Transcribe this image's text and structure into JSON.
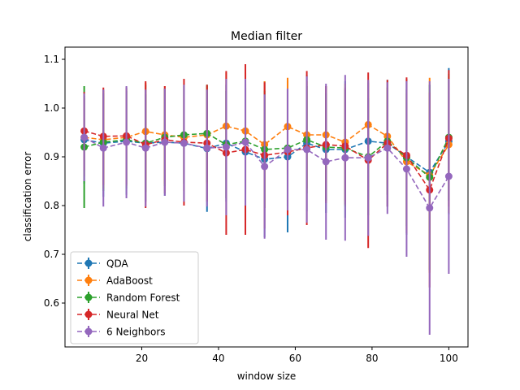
{
  "chart_data": {
    "type": "line",
    "title": "Median filter",
    "xlabel": "window size",
    "ylabel": "classification error",
    "xlim": [
      0,
      105
    ],
    "ylim": [
      0.51,
      1.125
    ],
    "xticks": [
      20,
      40,
      60,
      80,
      100
    ],
    "xtick_labels": [
      "20",
      "40",
      "60",
      "80",
      "100"
    ],
    "yticks": [
      0.6,
      0.7,
      0.8,
      0.9,
      1.0,
      1.1
    ],
    "ytick_labels": [
      "0.6",
      "0.7",
      "0.8",
      "0.9",
      "1.0",
      "1.1"
    ],
    "grid": false,
    "legend_position": "lower-left",
    "x": [
      5,
      10,
      16,
      21,
      26,
      31,
      37,
      42,
      47,
      52,
      58,
      63,
      68,
      73,
      79,
      84,
      89,
      95,
      100
    ],
    "series": [
      {
        "name": "QDA",
        "color": "#1f77b4",
        "values": [
          0.935,
          0.928,
          0.932,
          0.928,
          0.93,
          0.928,
          0.917,
          0.928,
          0.91,
          0.895,
          0.9,
          0.928,
          0.915,
          0.915,
          0.932,
          0.928,
          0.9,
          0.868,
          0.932
        ],
        "errors": [
          0.09,
          0.11,
          0.11,
          0.12,
          0.11,
          0.12,
          0.13,
          0.12,
          0.14,
          0.16,
          0.155,
          0.14,
          0.13,
          0.14,
          0.12,
          0.13,
          0.16,
          0.18,
          0.15
        ]
      },
      {
        "name": "AdaBoost",
        "color": "#ff7f0e",
        "values": [
          0.94,
          0.935,
          0.94,
          0.952,
          0.945,
          0.94,
          0.945,
          0.963,
          0.953,
          0.925,
          0.962,
          0.945,
          0.945,
          0.93,
          0.966,
          0.942,
          0.89,
          0.862,
          0.925
        ],
        "errors": [
          0.08,
          0.1,
          0.1,
          0.1,
          0.1,
          0.11,
          0.1,
          0.11,
          0.12,
          0.13,
          0.1,
          0.11,
          0.1,
          0.12,
          0.09,
          0.1,
          0.14,
          0.2,
          0.14
        ]
      },
      {
        "name": "Random Forest",
        "color": "#2ca02c",
        "values": [
          0.92,
          0.93,
          0.935,
          0.928,
          0.94,
          0.945,
          0.948,
          0.925,
          0.932,
          0.915,
          0.918,
          0.935,
          0.92,
          0.918,
          0.9,
          0.932,
          0.898,
          0.858,
          0.94
        ],
        "errors": [
          0.125,
          0.1,
          0.1,
          0.1,
          0.1,
          0.1,
          0.1,
          0.11,
          0.11,
          0.12,
          0.12,
          0.11,
          0.11,
          0.12,
          0.12,
          0.11,
          0.14,
          0.19,
          0.13
        ]
      },
      {
        "name": "Neural Net",
        "color": "#d62728",
        "values": [
          0.953,
          0.942,
          0.943,
          0.925,
          0.935,
          0.93,
          0.928,
          0.908,
          0.915,
          0.903,
          0.91,
          0.918,
          0.925,
          0.922,
          0.893,
          0.928,
          0.903,
          0.832,
          0.938
        ],
        "errors": [
          0.08,
          0.1,
          0.1,
          0.13,
          0.11,
          0.13,
          0.12,
          0.168,
          0.175,
          0.15,
          0.13,
          0.158,
          0.12,
          0.12,
          0.18,
          0.13,
          0.16,
          0.2,
          0.14
        ]
      },
      {
        "name": "6 Neighbors",
        "color": "#9467bd",
        "values": [
          0.94,
          0.918,
          0.93,
          0.918,
          0.93,
          0.928,
          0.918,
          0.92,
          0.93,
          0.88,
          0.915,
          0.915,
          0.89,
          0.898,
          0.898,
          0.918,
          0.875,
          0.795,
          0.86
        ],
        "errors": [
          0.09,
          0.12,
          0.115,
          0.12,
          0.11,
          0.12,
          0.12,
          0.14,
          0.13,
          0.148,
          0.125,
          0.15,
          0.16,
          0.17,
          0.16,
          0.135,
          0.18,
          0.26,
          0.2
        ]
      }
    ]
  }
}
